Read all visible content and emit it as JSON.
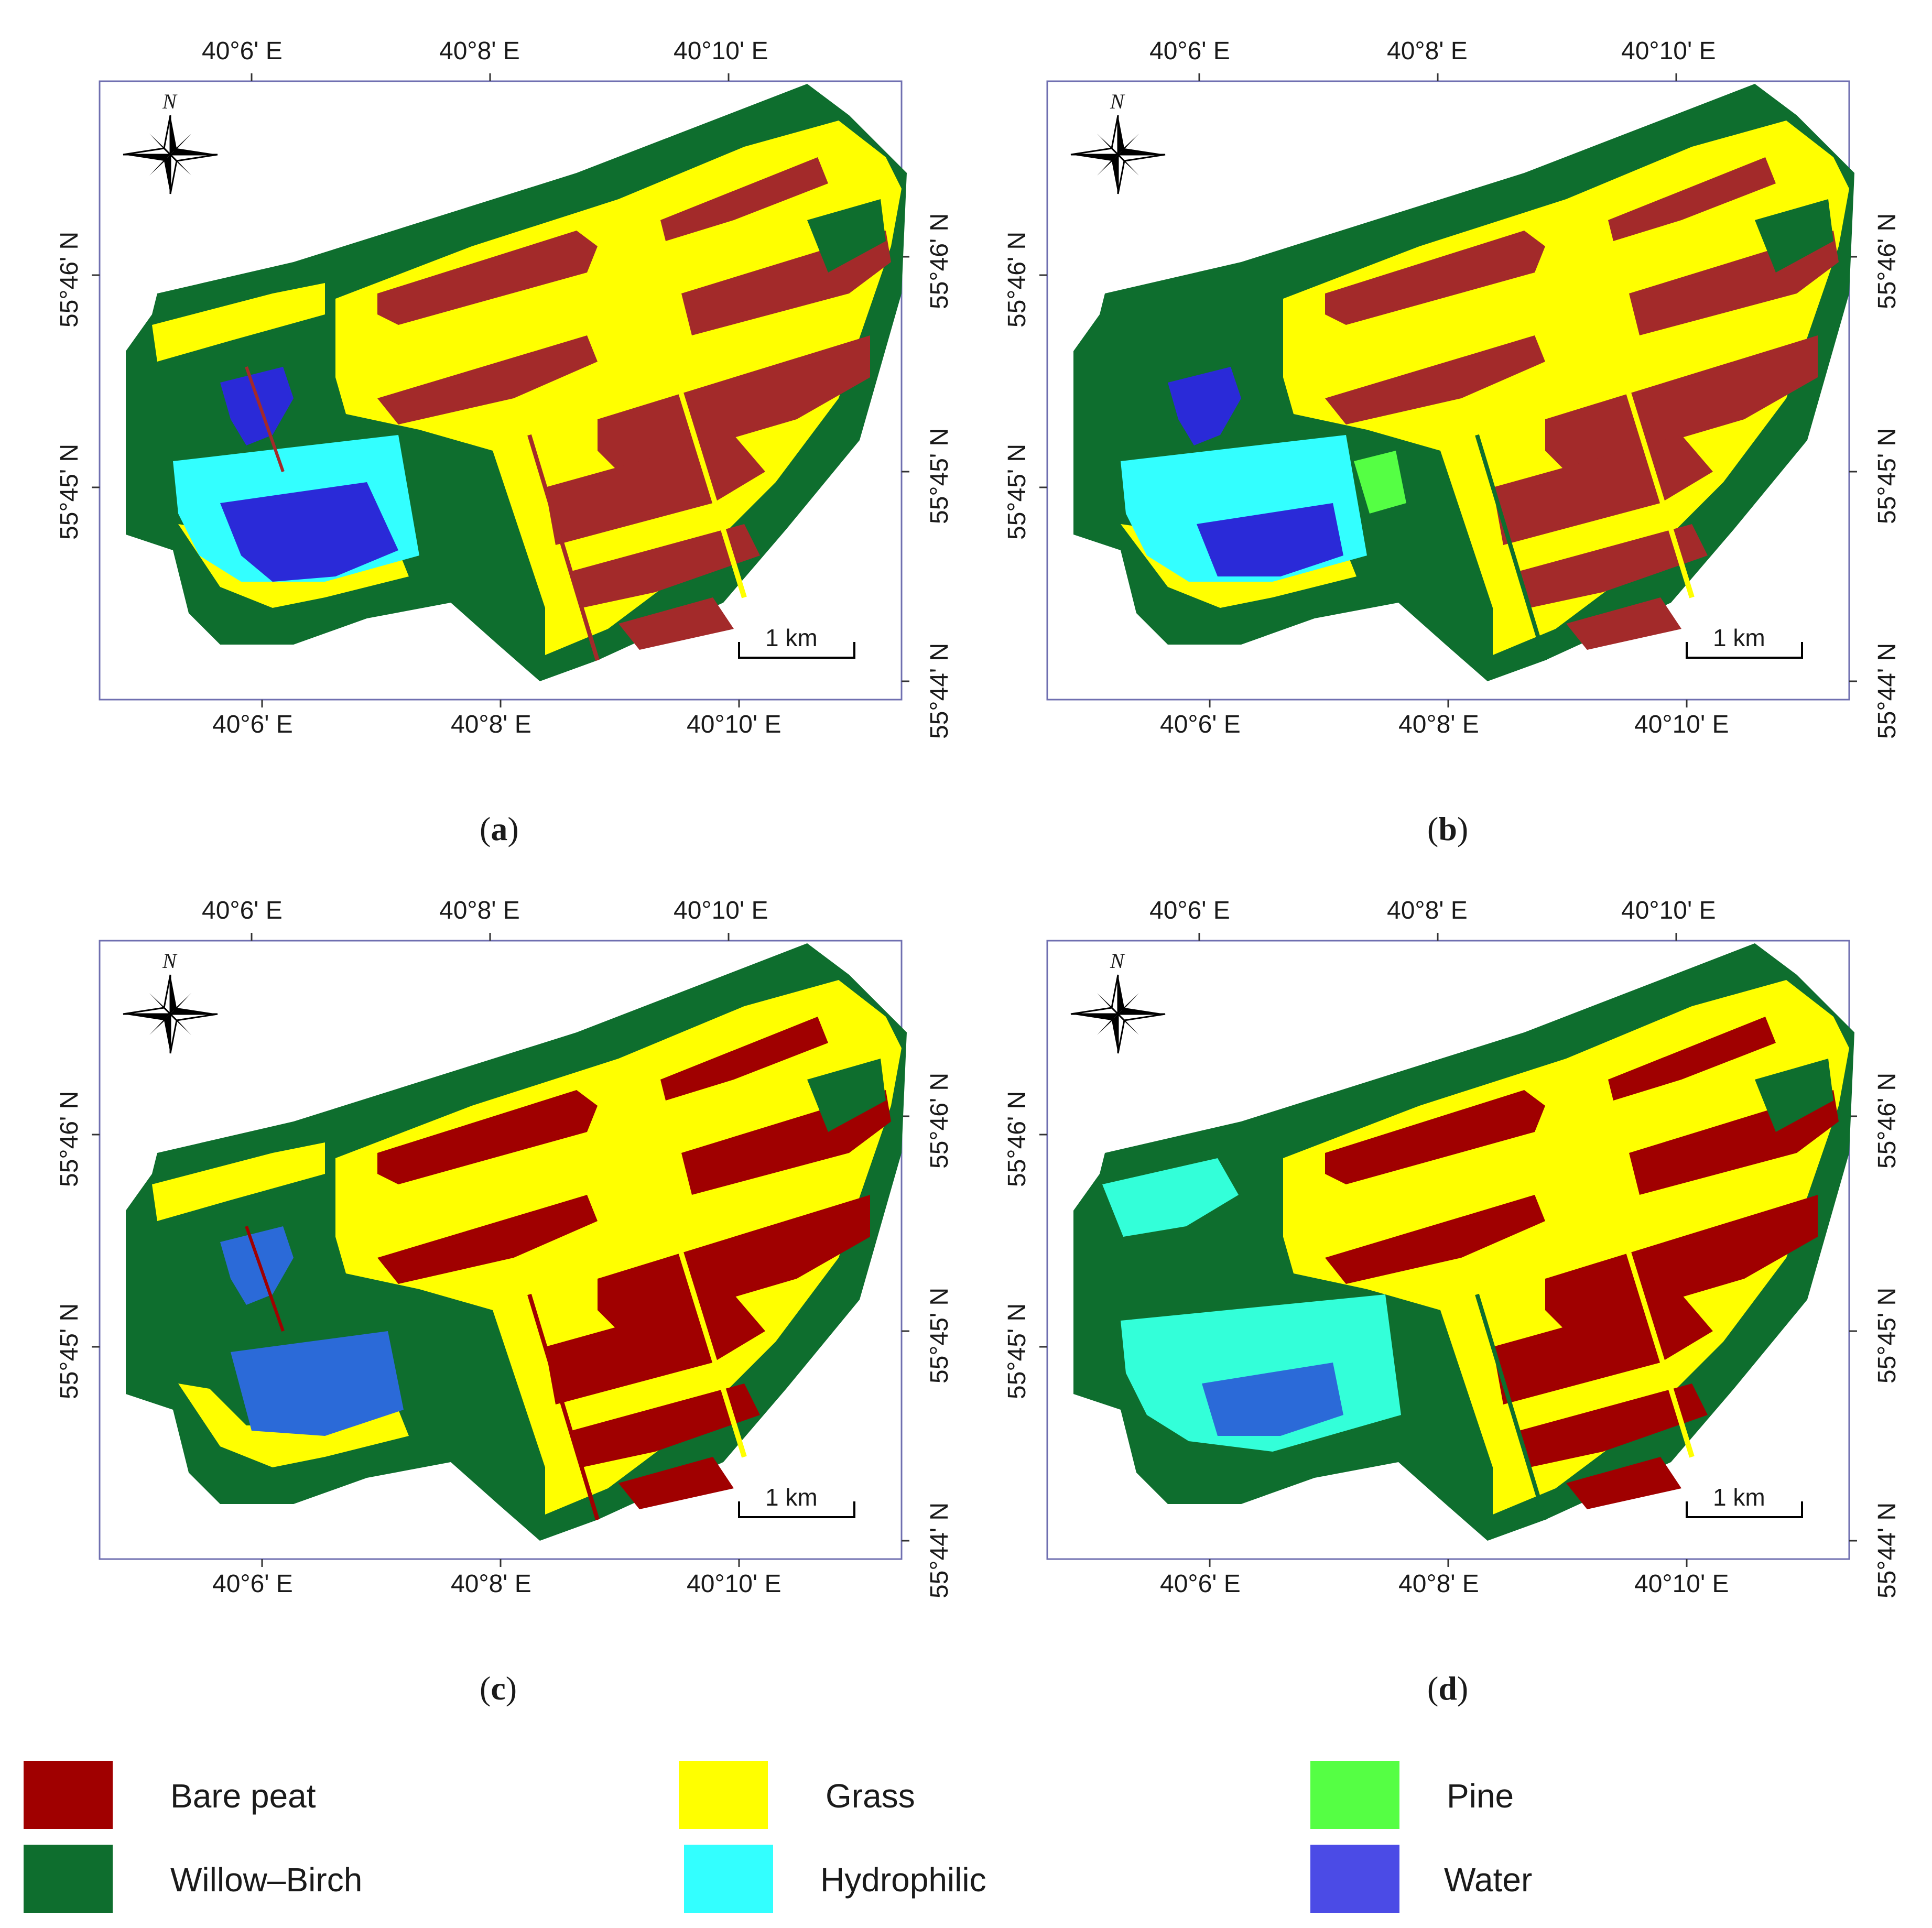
{
  "panels": [
    {
      "label_open": "(",
      "letter": "a",
      "label_close": ")"
    },
    {
      "label_open": "(",
      "letter": "b",
      "label_close": ")"
    },
    {
      "label_open": "(",
      "letter": "c",
      "label_close": ")"
    },
    {
      "label_open": "(",
      "letter": "d",
      "label_close": ")"
    }
  ],
  "lon_ticks": [
    "40°6' E",
    "40°8' E",
    "40°10' E"
  ],
  "lat_ticks": [
    "55°46' N",
    "55°45' N",
    "55°44' N"
  ],
  "north_label": "N",
  "scale_label": "1 km",
  "legend": [
    {
      "label": "Bare peat",
      "color": "#a00000"
    },
    {
      "label": "Grass",
      "color": "#ffff00"
    },
    {
      "label": "Pine",
      "color": "#55ff44"
    },
    {
      "label": "Willow–Birch",
      "color": "#0e6e2e"
    },
    {
      "label": "Hydrophilic",
      "color": "#33ffff"
    },
    {
      "label": "Water",
      "color": "#4b4be6"
    }
  ],
  "colors": {
    "frame": "#6f6fb0",
    "willow_birch": "#0e6e2e",
    "bare_peat_a": "#a32a2a",
    "bare_peat": "#a00000",
    "grass": "#ffff00",
    "hydrophilic": "#33ffff",
    "hydrophilic_d": "#33ffd9",
    "water": "#2a2ad8",
    "water_c": "#2b6ad8",
    "pine": "#55ff44"
  }
}
